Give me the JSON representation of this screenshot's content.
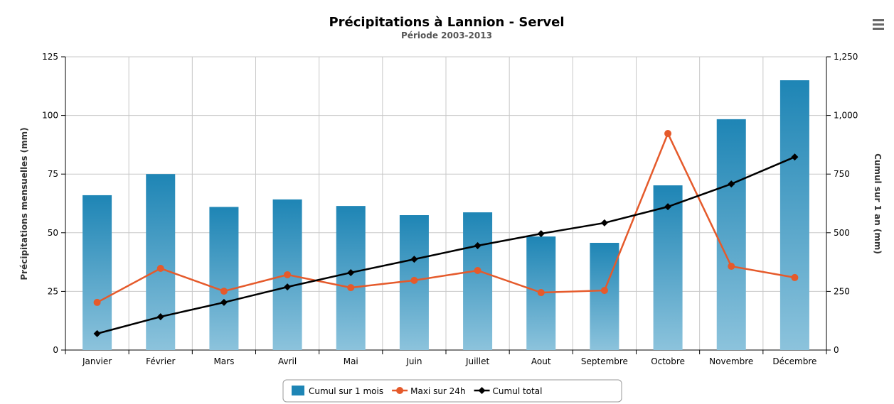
{
  "chart_data": {
    "type": "bar",
    "title": "Précipitations à Lannion - Servel",
    "subtitle": "Période 2003-2013",
    "y_label": "Précipitations mensuelles (mm)",
    "y2_label": "Cumul sur 1 an (mm)",
    "categories": [
      "Janvier",
      "Février",
      "Mars",
      "Avril",
      "Mai",
      "Juin",
      "Juillet",
      "Aout",
      "Septembre",
      "Octobre",
      "Novembre",
      "Décembre"
    ],
    "series": [
      {
        "name": "Cumul sur 1 mois",
        "type": "bar",
        "color": "#1e85b5",
        "values": [
          66,
          75,
          61,
          64.2,
          61.4,
          57.5,
          58.7,
          48.4,
          45.7,
          70.2,
          98.4,
          115
        ]
      },
      {
        "name": "Maxi sur 24h",
        "type": "line",
        "color": "#e55a2b",
        "values": [
          20.3,
          34.8,
          25.1,
          32.1,
          26.6,
          29.7,
          33.9,
          24.5,
          25.4,
          92.3,
          35.7,
          30.9
        ]
      },
      {
        "name": "Cumul total",
        "type": "line",
        "color": "#000000",
        "axis": "y2",
        "values": [
          70,
          142,
          203,
          269,
          330,
          387,
          445,
          496,
          542,
          611,
          708,
          823
        ]
      }
    ],
    "ylim": [
      0,
      125
    ],
    "yticks": [
      0,
      25,
      50,
      75,
      100,
      125
    ],
    "y2lim": [
      0,
      1250
    ],
    "y2ticks": [
      0,
      250,
      500,
      750,
      {
        "value": 1000,
        "label": "1,000"
      },
      {
        "value": 1250,
        "label": "1,250"
      }
    ],
    "grid": true,
    "legend": "bottom"
  }
}
